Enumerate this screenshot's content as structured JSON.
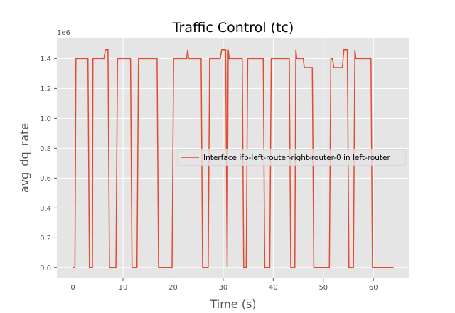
{
  "chart_data": {
    "type": "line",
    "title": "Traffic Control (tc)",
    "xlabel": "Time (s)",
    "ylabel": "avg_dq_rate",
    "y_offset_label": "1e6",
    "xlim": [
      -3.2,
      67.2
    ],
    "ylim": [
      -70000,
      1540000
    ],
    "x_ticks": [
      0,
      10,
      20,
      30,
      40,
      50,
      60
    ],
    "x_tick_labels": [
      "0",
      "10",
      "20",
      "30",
      "40",
      "50",
      "60"
    ],
    "y_ticks": [
      0,
      200000,
      400000,
      600000,
      800000,
      1000000,
      1200000,
      1400000
    ],
    "y_tick_labels": [
      "0.0",
      "0.2",
      "0.4",
      "0.6",
      "0.8",
      "1.0",
      "1.2",
      "1.4"
    ],
    "grid": true,
    "legend_position": "center-right",
    "colors": {
      "background": "#e5e5e5",
      "grid": "#ffffff",
      "series": "#e24a33"
    },
    "series": [
      {
        "name": "Interface ifb-left-router-right-router-0 in left-router",
        "x": [
          0,
          0.4,
          0.6,
          3,
          3.3,
          3.9,
          4,
          6.2,
          6.5,
          7,
          7.3,
          8.6,
          8.9,
          11.5,
          11.8,
          12.8,
          13.1,
          16.8,
          17.1,
          19.8,
          20.1,
          22.7,
          22.9,
          23.1,
          25.6,
          25.9,
          27,
          27.3,
          29.4,
          29.7,
          30.5,
          30.8,
          31,
          31.2,
          31.4,
          31.6,
          33.8,
          34.1,
          34.6,
          34.9,
          38,
          38.3,
          39.3,
          39.6,
          43.2,
          43.5,
          44.3,
          44.5,
          44.7,
          46,
          46.2,
          47.8,
          48.1,
          51.2,
          51.5,
          51.8,
          52.1,
          53.8,
          54.1,
          54.8,
          55.1,
          56,
          56.3,
          56.5,
          56.8,
          59.5,
          59.8,
          64
        ],
        "y": [
          0,
          0,
          1400000,
          1400000,
          0,
          0,
          1400000,
          1400000,
          1460000,
          1460000,
          0,
          0,
          1400000,
          1400000,
          0,
          0,
          1400000,
          1400000,
          0,
          0,
          1400000,
          1400000,
          1460000,
          1400000,
          1400000,
          0,
          0,
          1400000,
          1400000,
          1460000,
          1460000,
          0,
          1460000,
          1400000,
          1400000,
          1400000,
          1400000,
          0,
          0,
          1400000,
          1400000,
          0,
          0,
          1400000,
          1400000,
          0,
          0,
          1460000,
          1400000,
          1400000,
          1340000,
          1340000,
          0,
          0,
          1400000,
          1400000,
          1340000,
          1340000,
          1460000,
          1460000,
          0,
          0,
          1460000,
          1400000,
          1400000,
          1400000,
          0,
          0
        ]
      }
    ]
  }
}
